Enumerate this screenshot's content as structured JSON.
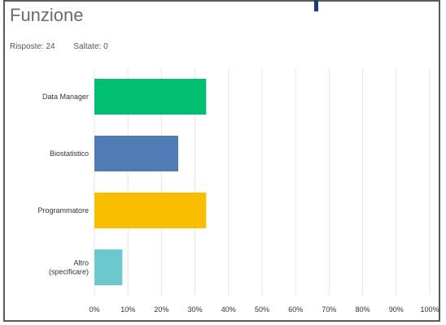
{
  "header": {
    "title": "Funzione",
    "responses_label": "Risposte: 24",
    "skipped_label": "Saltate: 0"
  },
  "chart_data": {
    "type": "bar",
    "orientation": "horizontal",
    "categories": [
      [
        "Data Manager"
      ],
      [
        "Biostatistico"
      ],
      [
        "Programmatore"
      ],
      [
        "Altro",
        "(specificare)"
      ]
    ],
    "values": [
      33.33,
      25,
      33.33,
      8.33
    ],
    "colors": [
      "#00bf6f",
      "#507cb6",
      "#f9be00",
      "#6bc8cd"
    ],
    "xlim": [
      0,
      100
    ],
    "xticks": [
      "0%",
      "10%",
      "20%",
      "30%",
      "40%",
      "50%",
      "60%",
      "70%",
      "80%",
      "90%",
      "100%"
    ],
    "grid": true
  }
}
